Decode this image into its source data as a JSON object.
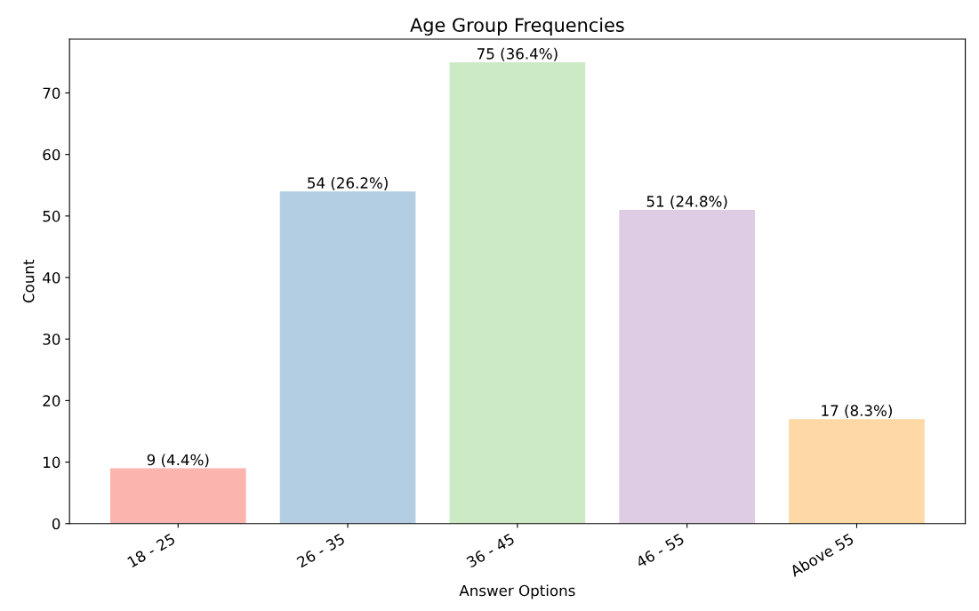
{
  "chart_data": {
    "type": "bar",
    "title": "Age Group Frequencies",
    "xlabel": "Answer Options",
    "ylabel": "Count",
    "categories": [
      "18 - 25",
      "26 - 35",
      "36 - 45",
      "46 - 55",
      "Above 55"
    ],
    "values": [
      9,
      54,
      75,
      51,
      17
    ],
    "colors": [
      "#fbb4ae",
      "#b3cde3",
      "#ccebc5",
      "#decbe4",
      "#fed9a6"
    ],
    "value_labels": [
      "9 (4.4%)",
      "54 (26.2%)",
      "75 (36.4%)",
      "51 (24.8%)",
      "17 (8.3%)"
    ],
    "ylim": [
      0,
      78.75
    ],
    "yticks": [
      0,
      10,
      20,
      30,
      40,
      50,
      60,
      70
    ]
  }
}
